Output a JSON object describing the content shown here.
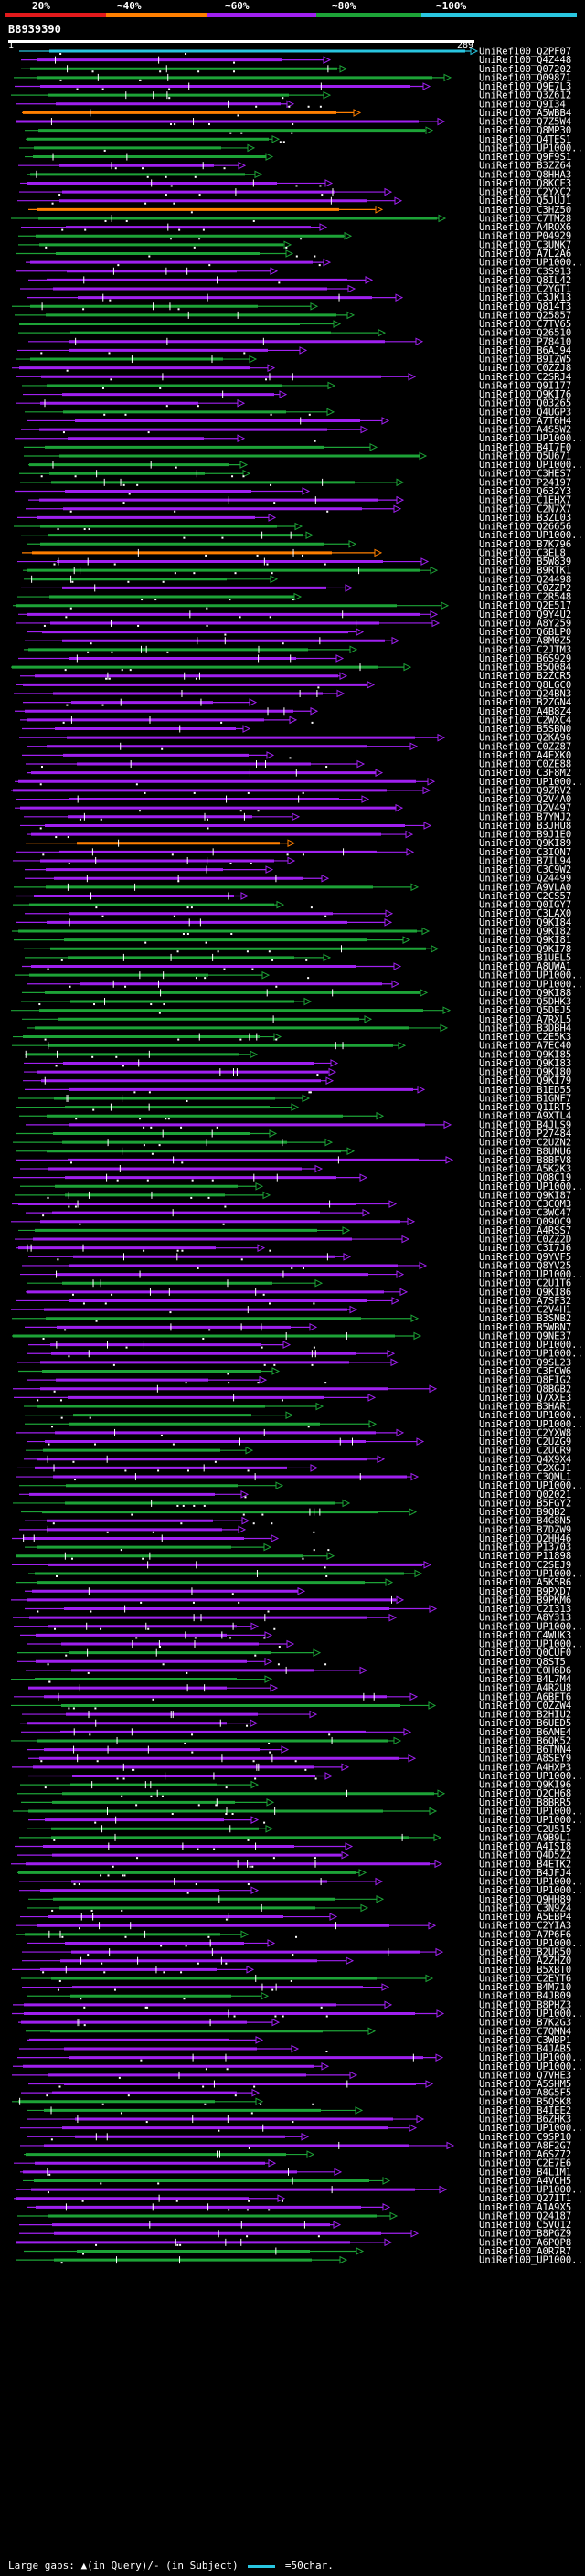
{
  "legend": {
    "thresholds": [
      "20%",
      "~40%",
      "~60%",
      "~80%",
      "~100%"
    ],
    "colors": [
      "#e21a1c",
      "#ff7f00",
      "#a020f0",
      "#1da337",
      "#29c6e0"
    ]
  },
  "query": {
    "id": "B8939390",
    "start": "1",
    "end": "289"
  },
  "hits": [
    "UniRef100_Q2PF07",
    "UniRef100_Q4Z448",
    "UniRef100_Q07202",
    "UniRef100_Q09871",
    "UniRef100_Q9E7L3",
    "UniRef100_Q3Z612",
    "UniRef100_Q9I34",
    "UniRef100_A5WBB4",
    "UniRef100_Q7Z5W4",
    "UniRef100_Q8MP30",
    "UniRef100_Q4TES1",
    "UniRef100_UP1000...",
    "UniRef100_Q9F9S1",
    "UniRef100_B3ZZ64",
    "UniRef100_Q8HHA3",
    "UniRef100_Q8KCE3",
    "UniRef100_C2YXC2",
    "UniRef100_Q5JUJ1",
    "UniRef100_C3HZ50",
    "UniRef100_C7TM28",
    "UniRef100_A4ROX6",
    "UniRef100_P04929",
    "UniRef100_C3UNK7",
    "UniRef100_A7L2A6",
    "UniRef100_UP1000...",
    "UniRef100_C3S913",
    "UniRef100_Q8IL42",
    "UniRef100_C2YGT1",
    "UniRef100_C3JK13",
    "UniRef100_Q814T3",
    "UniRef100_Q25857",
    "UniRef100_C7TV65",
    "UniRef100_Q26510",
    "UniRef100_P78410",
    "UniRef100_B6AJ94",
    "UniRef100_B9IZW5",
    "UniRef100_C0ZZJ8",
    "UniRef100_C2SRJ4",
    "UniRef100_Q9I177",
    "UniRef100_Q9KI76",
    "UniRef100_Q03265",
    "UniRef100_Q4UGP3",
    "UniRef100_A7T6H4",
    "UniRef100_A4S5W2",
    "UniRef100_UP1000...",
    "UniRef100_B4I7F0",
    "UniRef100_Q5U671",
    "UniRef100_UP1000...",
    "UniRef100_C3HES7",
    "UniRef100_P24197",
    "UniRef100_Q632Y3",
    "UniRef100_C1EHX7",
    "UniRef100_C2N7X7",
    "UniRef100_B3ZL03",
    "UniRef100_Q26656",
    "UniRef100_UP1000...",
    "UniRef100_B7K796",
    "UniRef100_C3EL8",
    "UniRef100_B5W839",
    "UniRef100_B9RTK1",
    "UniRef100_Q24498",
    "UniRef100_C0ZZP2",
    "UniRef100_C2R548",
    "UniRef100_Q2E517",
    "UniRef100_Q9Y4U2",
    "UniRef100_A8Y259",
    "UniRef100_Q6BLP0",
    "UniRef100_A8M0Z5",
    "UniRef100_C2JTM3",
    "UniRef100_B6S929",
    "UniRef100_B5Q084",
    "UniRef100_B2ZCR5",
    "UniRef100_Q8LGC0",
    "UniRef100_Q24BN3",
    "UniRef100_B2ZGN4",
    "UniRef100_A4B8Z4",
    "UniRef100_C2WXC4",
    "UniRef100_B5SBN0",
    "UniRef100_Q2KA96",
    "UniRef100_C0ZZ87",
    "UniRef100_A4EXK0",
    "UniRef100_C0ZE88",
    "UniRef100_C3F8M2",
    "UniRef100_UP1000...",
    "UniRef100_Q9ZRV2",
    "UniRef100_Q2V4A0",
    "UniRef100_Q2V497",
    "UniRef100_B7YMJ2",
    "UniRef100_B3JHU8",
    "UniRef100_B9J1E0",
    "UniRef100_Q9KI89",
    "UniRef100_C3IQN7",
    "UniRef100_B7IL94",
    "UniRef100_C3C9W2",
    "UniRef100_Q24499",
    "UniRef100_A9VLA0",
    "UniRef100_C2CS57",
    "UniRef100_Q0IGY7",
    "UniRef100_C3LAX0",
    "UniRef100_Q9KI84",
    "UniRef100_Q9KI82",
    "UniRef100_Q9KI81",
    "UniRef100_Q9KI78",
    "UniRef100_B1UEL5",
    "UniRef100_A8UWA1",
    "UniRef100_UP1000...",
    "UniRef100_UP1000...",
    "UniRef100_Q9KI88",
    "UniRef100_Q5DHK3",
    "UniRef100_Q5DEJ5",
    "UniRef100_A7RXL5",
    "UniRef100_B3DBH4",
    "UniRef100_C2E5K3",
    "UniRef100_A7EC40",
    "UniRef100_Q9KI85",
    "UniRef100_Q9KI83",
    "UniRef100_Q9KI80",
    "UniRef100_Q9KI79",
    "UniRef100_B1ED55",
    "UniRef100_B1GNF7",
    "UniRef100_Q1IRT5",
    "UniRef100_A9XTL4",
    "UniRef100_B4JLS9",
    "UniRef100_P27484",
    "UniRef100_C2UZN2",
    "UniRef100_B8UNU6",
    "UniRef100_B8BFV8",
    "UniRef100_A5K2K3",
    "UniRef100_Q08C19",
    "UniRef100_UP1000...",
    "UniRef100_Q9KI87",
    "UniRef100_C3CQM3",
    "UniRef100_C3WC47",
    "UniRef100_Q09QC9",
    "UniRef100_A4RSS7",
    "UniRef100_C0ZZ2D",
    "UniRef100_C3I7J6",
    "UniRef100_Q9YVF5",
    "UniRef100_Q8YV25",
    "UniRef100_UP1000...",
    "UniRef100_C2U1T6",
    "UniRef100_Q9KI86",
    "UniRef100_A7SF32",
    "UniRef100_C2V4H1",
    "UniRef100_B3SNB2",
    "UniRef100_B5WBN7",
    "UniRef100_Q9NE37",
    "UniRef100_UP1000...",
    "UniRef100_UP1000...",
    "UniRef100_Q9SL23",
    "UniRef100_C3FCW6",
    "UniRef100_Q8FIG2",
    "UniRef100_Q8BGB2",
    "UniRef100_Q7XXE3",
    "UniRef100_B3HAR1",
    "UniRef100_UP1000...",
    "UniRef100_UP1000...",
    "UniRef100_C2YXW8",
    "UniRef100_C2UZG9",
    "UniRef100_C2UCR9",
    "UniRef100_Q4X9X4",
    "UniRef100_C2XGJ1",
    "UniRef100_C3QML1",
    "UniRef100_UP1000...",
    "UniRef100_Q02021",
    "UniRef100_B5FGY2",
    "UniRef100_B9QB2",
    "UniRef100_B4G8N5",
    "UniRef100_B7DZW9",
    "UniRef100_Q2HH46",
    "UniRef100_P13703",
    "UniRef100_P11898",
    "UniRef100_C2SEJ9",
    "UniRef100_UP1000...",
    "UniRef100_A5K5R6",
    "UniRef100_B9PXD7",
    "UniRef100_B9PKM6",
    "UniRef100_C2I313",
    "UniRef100_A8Y313",
    "UniRef100_UP1000...",
    "UniRef100_C4WUK3",
    "UniRef100_UP1000...",
    "UniRef100_Q0CUF0",
    "UniRef100_Q8ST5",
    "UniRef100_C0H6D6",
    "UniRef100_B4L7M4",
    "UniRef100_A4R2U8",
    "UniRef100_A6BFT6",
    "UniRef100_C0ZZW4",
    "UniRef100_B2HIU2",
    "UniRef100_B6UED5",
    "UniRef100_B6AME4",
    "UniRef100_B6QK52",
    "UniRef100_B6TNN4",
    "UniRef100_A8SEY9",
    "UniRef100_A4HXP3",
    "UniRef100_UP1000...",
    "UniRef100_Q9KI96",
    "UniRef100_Q2CH68",
    "UniRef100_B8BRR5",
    "UniRef100_UP1000...",
    "UniRef100_UP1000...",
    "UniRef100_C2U515",
    "UniRef100_A9B9L1",
    "UniRef100_A4ISI8",
    "UniRef100_Q4D5Z2",
    "UniRef100_B4ETK2",
    "UniRef100_B4JFJ4",
    "UniRef100_UP1000...",
    "UniRef100_UP1000...",
    "UniRef100_Q9HH89",
    "UniRef100_C3N9Z4",
    "UniRef100_A5EBP4",
    "UniRef100_C2YIA3",
    "UniRef100_A7P6F6",
    "UniRef100_UP1000...",
    "UniRef100_B2UR50",
    "UniRef100_A2ZHZ0",
    "UniRef100_B5XBT0",
    "UniRef100_C2EYT6",
    "UniRef100_B4M710",
    "UniRef100_B4JB09",
    "UniRef100_B8PHZ3",
    "UniRef100_UP1000...",
    "UniRef100_B7K2G3",
    "UniRef100_C7QMN4",
    "UniRef100_C3WBP1",
    "UniRef100_B4JAB5",
    "UniRef100_UP1000...",
    "UniRef100_UP1000...",
    "UniRef100_Q7VHE3",
    "UniRef100_A5SHM5",
    "UniRef100_A8G5F5",
    "UniRef100_B5QSK8",
    "UniRef100_B4IEE2",
    "UniRef100_B6ZHK3",
    "UniRef100_UP1000...",
    "UniRef100_C9SP10",
    "UniRef100_A8F2G7",
    "UniRef100_A6SZ72",
    "UniRef100_C2E7E6",
    "UniRef100_B4L1M1",
    "UniRef100_A4VCH5",
    "UniRef100_UP1000...",
    "UniRef100_Q27IT1",
    "UniRef100_A1A9X5",
    "UniRef100_Q24187",
    "UniRef100_C5VQ12",
    "UniRef100_B8PGZ9",
    "UniRef100_A6PQP8",
    "UniRef100_A0R7R7",
    "UniRef100_UP1000..."
  ],
  "footer": {
    "text": "Large gaps: ▲(in Query)/- (in Subject)",
    "scale": "=50char."
  }
}
